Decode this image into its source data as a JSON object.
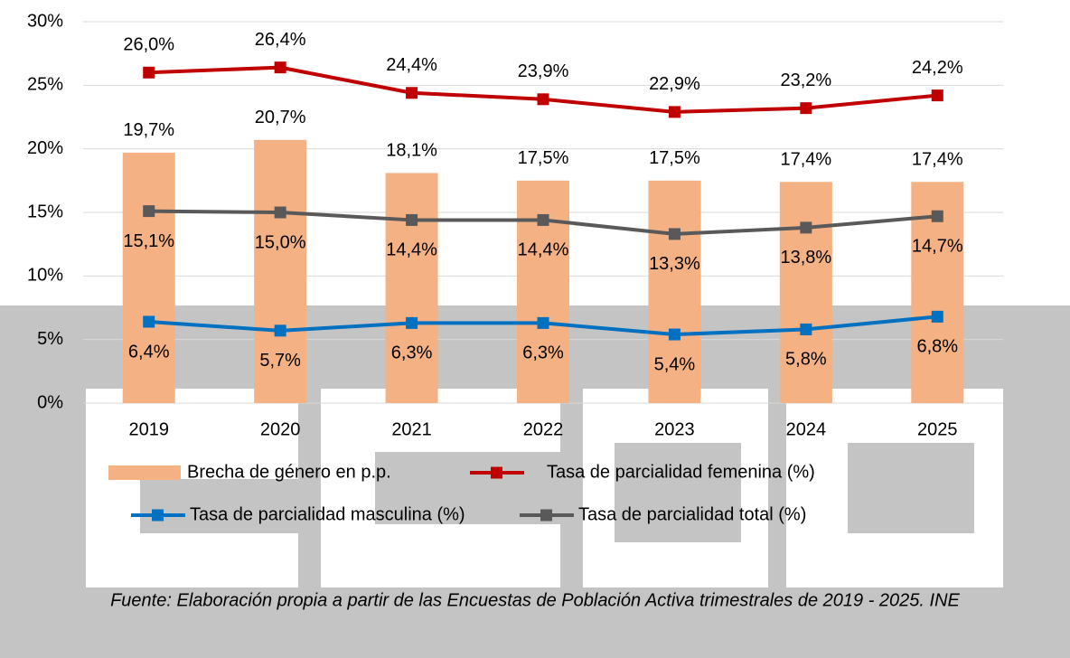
{
  "chart_data": {
    "type": "bar",
    "categories": [
      "2019",
      "2020",
      "2021",
      "2022",
      "2023",
      "2024",
      "2025"
    ],
    "ylim": [
      0,
      30
    ],
    "yticks": [
      {
        "value": 0,
        "label": "0%"
      },
      {
        "value": 5,
        "label": "5%"
      },
      {
        "value": 10,
        "label": "10%"
      },
      {
        "value": 15,
        "label": "15%"
      },
      {
        "value": 20,
        "label": "20%"
      },
      {
        "value": 25,
        "label": "25%"
      },
      {
        "value": 30,
        "label": "30%"
      }
    ],
    "grid": true,
    "series": [
      {
        "name": "Brecha de género en p.p.",
        "type": "bar",
        "color": "#f4b183",
        "values": [
          19.7,
          20.7,
          18.1,
          17.5,
          17.5,
          17.4,
          17.4
        ],
        "value_labels": [
          "19,7%",
          "20,7%",
          "18,1%",
          "17,5%",
          "17,5%",
          "17,4%",
          "17,4%"
        ]
      },
      {
        "name": "Tasa de parcialidad femenina (%)",
        "type": "line",
        "color": "#c00000",
        "values": [
          26.0,
          26.4,
          24.4,
          23.9,
          22.9,
          23.2,
          24.2
        ],
        "value_labels": [
          "26,0%",
          "26,4%",
          "24,4%",
          "23,9%",
          "22,9%",
          "23,2%",
          "24,2%"
        ]
      },
      {
        "name": "Tasa de parcialidad masculina (%)",
        "type": "line",
        "color": "#0070c0",
        "values": [
          6.4,
          5.7,
          6.3,
          6.3,
          5.4,
          5.8,
          6.8
        ],
        "value_labels": [
          "6,4%",
          "5,7%",
          "6,3%",
          "6,3%",
          "5,4%",
          "5,8%",
          "6,8%"
        ]
      },
      {
        "name": "Tasa de parcialidad total (%)",
        "type": "line",
        "color": "#595959",
        "values": [
          15.1,
          15.0,
          14.4,
          14.4,
          13.3,
          13.8,
          14.7
        ],
        "value_labels": [
          "15,1%",
          "15,0%",
          "14,4%",
          "14,4%",
          "13,3%",
          "13,8%",
          "14,7%"
        ]
      }
    ],
    "source": "Fuente: Elaboración propia a partir de las Encuestas de Población Activa trimestrales de 2019 - 2025. INE"
  }
}
